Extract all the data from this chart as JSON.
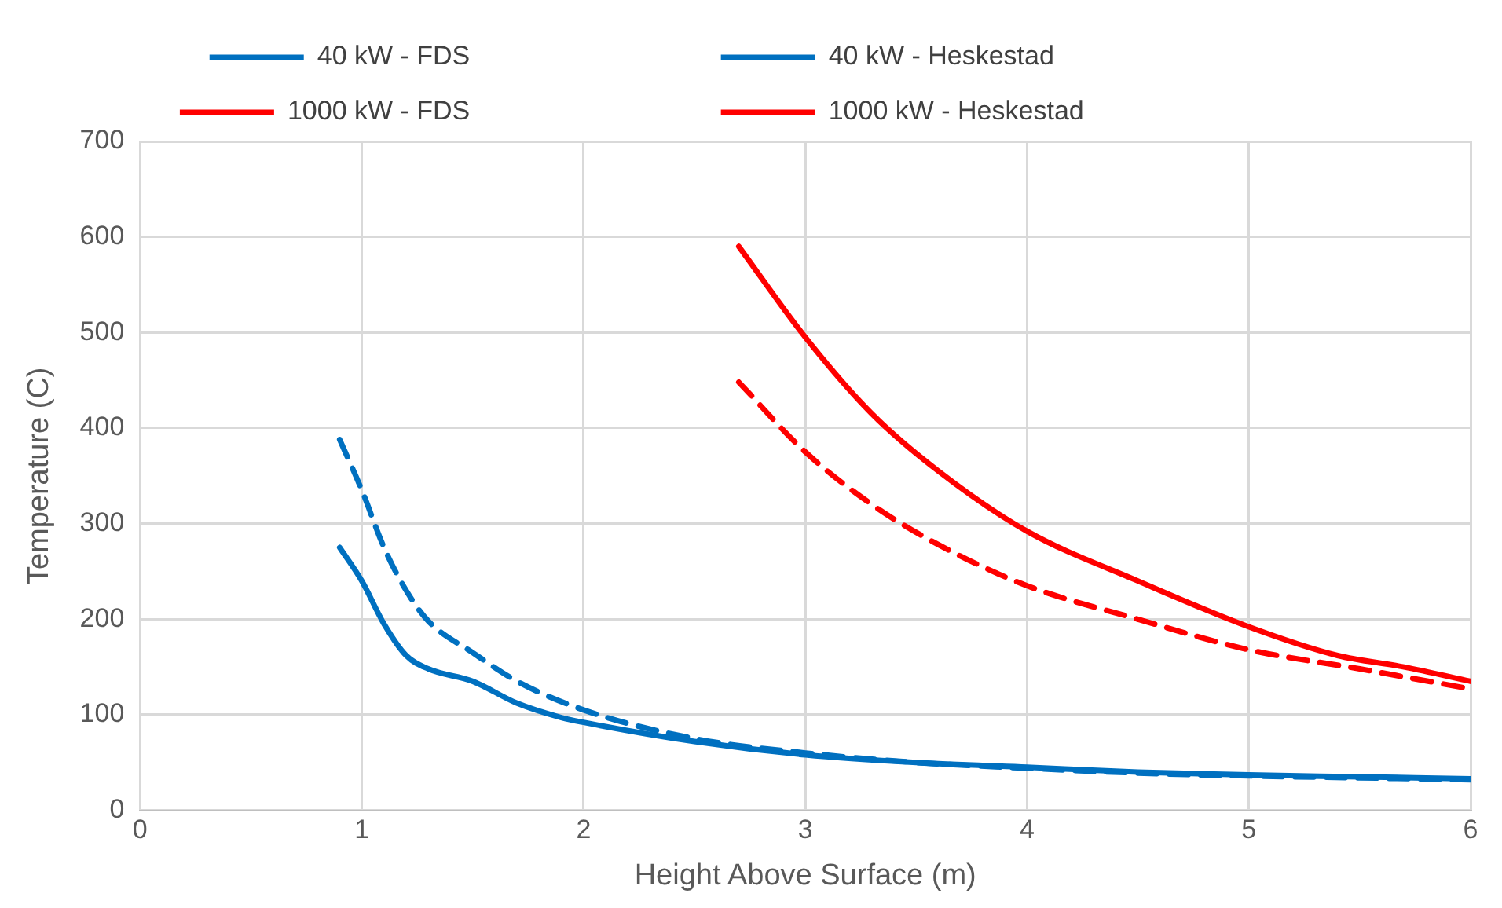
{
  "chart_data": {
    "type": "line",
    "xlabel": "Height Above Surface (m)",
    "ylabel": "Temperature (C)",
    "xlim": [
      0,
      6
    ],
    "xticks": [
      0,
      1,
      2,
      3,
      4,
      5,
      6
    ],
    "ylim": [
      0,
      700
    ],
    "yticks": [
      0,
      100,
      200,
      300,
      400,
      500,
      600,
      700
    ],
    "grid": true,
    "legend": "top",
    "marker": "none",
    "series": [
      {
        "name": "40 kW - FDS",
        "color": "#0070c0",
        "line_style": "solid",
        "x": [
          0.9,
          1.0,
          1.1,
          1.2,
          1.3,
          1.5,
          1.7,
          1.9,
          2.0,
          2.5,
          3,
          3.5,
          4,
          4.5,
          5,
          5.5,
          6
        ],
        "values": [
          275,
          240,
          195,
          162,
          148,
          135,
          112,
          97,
          92,
          72,
          58,
          50,
          45,
          40,
          37,
          35,
          33
        ]
      },
      {
        "name": "40 kW - Heskestad",
        "color": "#0070c0",
        "line_style": "dashed",
        "x": [
          0.9,
          1.0,
          1.1,
          1.2,
          1.3,
          1.5,
          1.7,
          2.0,
          2.5,
          3,
          3.5,
          4,
          4.5,
          5,
          5.5,
          6
        ],
        "values": [
          388,
          335,
          275,
          230,
          198,
          165,
          135,
          105,
          75,
          60,
          50,
          44,
          39,
          36,
          34,
          32
        ]
      },
      {
        "name": "1000 kW - FDS",
        "color": "#ff0000",
        "line_style": "solid",
        "x": [
          2.7,
          3.0,
          3.3,
          3.6,
          4.0,
          4.5,
          5.0,
          5.4,
          5.7,
          6
        ],
        "values": [
          590,
          495,
          415,
          355,
          292,
          240,
          192,
          162,
          150,
          135
        ]
      },
      {
        "name": "1000 kW - Heskestad",
        "color": "#ff0000",
        "line_style": "dashed",
        "x": [
          2.7,
          3.0,
          3.3,
          3.6,
          4,
          4.5,
          5,
          5.5,
          6
        ],
        "values": [
          448,
          375,
          320,
          278,
          235,
          200,
          168,
          148,
          127
        ]
      }
    ]
  }
}
